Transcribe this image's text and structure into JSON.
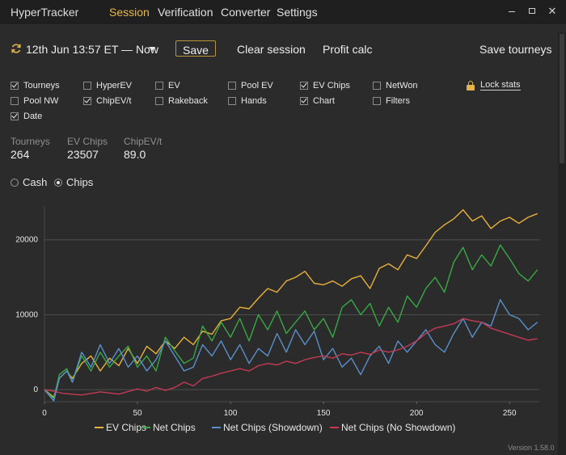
{
  "app": {
    "title": "HyperTracker",
    "version": "Version 1.58.0"
  },
  "menu": [
    {
      "label": "Session",
      "active": true
    },
    {
      "label": "Verification",
      "active": false
    },
    {
      "label": "Converter",
      "active": false
    },
    {
      "label": "Settings",
      "active": false
    }
  ],
  "toolbar": {
    "session_range": "12th Jun 13:57 ET — Now",
    "save_label": "Save",
    "clear_label": "Clear session",
    "profit_label": "Profit calc",
    "save_tourneys_label": "Save tourneys"
  },
  "checkboxes": [
    {
      "label": "Tourneys",
      "checked": true
    },
    {
      "label": "HyperEV",
      "checked": false
    },
    {
      "label": "EV",
      "checked": false
    },
    {
      "label": "Pool EV",
      "checked": false
    },
    {
      "label": "EV Chips",
      "checked": true
    },
    {
      "label": "NetWon",
      "checked": false
    },
    {
      "label": "Pool NW",
      "checked": false
    },
    {
      "label": "ChipEV/t",
      "checked": true
    },
    {
      "label": "Rakeback",
      "checked": false
    },
    {
      "label": "Hands",
      "checked": false
    },
    {
      "label": "Chart",
      "checked": true
    },
    {
      "label": "Filters",
      "checked": false
    },
    {
      "label": "Date",
      "checked": true
    }
  ],
  "lock": {
    "label": "Lock stats"
  },
  "stats": [
    {
      "label": "Tourneys",
      "value": "264"
    },
    {
      "label": "EV Chips",
      "value": "23507"
    },
    {
      "label": "ChipEV/t",
      "value": "89.0"
    }
  ],
  "mode": {
    "options": [
      {
        "label": "Cash",
        "selected": false
      },
      {
        "label": "Chips",
        "selected": true
      }
    ]
  },
  "chart_data": {
    "type": "line",
    "title": "",
    "xlabel": "",
    "ylabel": "",
    "xlim": [
      0,
      266
    ],
    "ylim": [
      -1600,
      24500
    ],
    "x_ticks": [
      0,
      50,
      100,
      150,
      200,
      250
    ],
    "y_ticks": [
      0,
      10000,
      20000
    ],
    "grid": "horizontal",
    "legend_position": "bottom",
    "series": [
      {
        "name": "EV Chips",
        "color": "#e8b13a",
        "points": [
          [
            0,
            0
          ],
          [
            5,
            -1000
          ],
          [
            8,
            1500
          ],
          [
            12,
            2500
          ],
          [
            15,
            1500
          ],
          [
            20,
            3500
          ],
          [
            25,
            4500
          ],
          [
            30,
            2500
          ],
          [
            35,
            4200
          ],
          [
            40,
            3200
          ],
          [
            45,
            5500
          ],
          [
            50,
            3500
          ],
          [
            55,
            5800
          ],
          [
            60,
            4800
          ],
          [
            65,
            6500
          ],
          [
            70,
            5500
          ],
          [
            75,
            7000
          ],
          [
            80,
            6000
          ],
          [
            85,
            7800
          ],
          [
            90,
            7400
          ],
          [
            95,
            9200
          ],
          [
            100,
            9500
          ],
          [
            105,
            11000
          ],
          [
            110,
            10800
          ],
          [
            115,
            12200
          ],
          [
            120,
            13500
          ],
          [
            125,
            13000
          ],
          [
            130,
            14500
          ],
          [
            135,
            15000
          ],
          [
            140,
            15800
          ],
          [
            145,
            14200
          ],
          [
            150,
            14000
          ],
          [
            155,
            14500
          ],
          [
            160,
            13800
          ],
          [
            165,
            14800
          ],
          [
            170,
            15200
          ],
          [
            175,
            13500
          ],
          [
            180,
            16200
          ],
          [
            185,
            16800
          ],
          [
            190,
            16000
          ],
          [
            195,
            18000
          ],
          [
            200,
            17500
          ],
          [
            205,
            19200
          ],
          [
            210,
            21000
          ],
          [
            215,
            22000
          ],
          [
            220,
            22800
          ],
          [
            225,
            24000
          ],
          [
            230,
            22500
          ],
          [
            235,
            23200
          ],
          [
            240,
            21500
          ],
          [
            245,
            22500
          ],
          [
            250,
            23000
          ],
          [
            255,
            22200
          ],
          [
            260,
            23000
          ],
          [
            265,
            23500
          ]
        ]
      },
      {
        "name": "Net Chips",
        "color": "#39a845",
        "points": [
          [
            0,
            0
          ],
          [
            5,
            -1200
          ],
          [
            8,
            2000
          ],
          [
            12,
            2800
          ],
          [
            15,
            1000
          ],
          [
            20,
            4500
          ],
          [
            25,
            2500
          ],
          [
            30,
            5000
          ],
          [
            35,
            3000
          ],
          [
            40,
            4500
          ],
          [
            45,
            5800
          ],
          [
            50,
            3000
          ],
          [
            55,
            4500
          ],
          [
            60,
            2500
          ],
          [
            65,
            7000
          ],
          [
            70,
            5200
          ],
          [
            75,
            3500
          ],
          [
            80,
            4200
          ],
          [
            85,
            8500
          ],
          [
            90,
            6500
          ],
          [
            95,
            9000
          ],
          [
            100,
            7000
          ],
          [
            105,
            9500
          ],
          [
            110,
            6500
          ],
          [
            115,
            10000
          ],
          [
            120,
            8000
          ],
          [
            125,
            10500
          ],
          [
            130,
            7500
          ],
          [
            135,
            9000
          ],
          [
            140,
            10500
          ],
          [
            145,
            8000
          ],
          [
            150,
            9500
          ],
          [
            155,
            7000
          ],
          [
            160,
            11000
          ],
          [
            165,
            12000
          ],
          [
            170,
            10000
          ],
          [
            175,
            11500
          ],
          [
            180,
            8500
          ],
          [
            185,
            11000
          ],
          [
            190,
            9000
          ],
          [
            195,
            12500
          ],
          [
            200,
            11000
          ],
          [
            205,
            13500
          ],
          [
            210,
            15000
          ],
          [
            215,
            13000
          ],
          [
            220,
            17000
          ],
          [
            225,
            19000
          ],
          [
            230,
            16000
          ],
          [
            235,
            18000
          ],
          [
            240,
            16500
          ],
          [
            245,
            19300
          ],
          [
            250,
            17500
          ],
          [
            255,
            15500
          ],
          [
            260,
            14500
          ],
          [
            265,
            16000
          ]
        ]
      },
      {
        "name": "Net Chips (Showdown)",
        "color": "#5a8fca",
        "points": [
          [
            0,
            0
          ],
          [
            5,
            -1500
          ],
          [
            8,
            1500
          ],
          [
            12,
            2500
          ],
          [
            15,
            1000
          ],
          [
            20,
            5000
          ],
          [
            25,
            3000
          ],
          [
            30,
            6000
          ],
          [
            35,
            3500
          ],
          [
            40,
            5500
          ],
          [
            45,
            3000
          ],
          [
            50,
            4500
          ],
          [
            55,
            2500
          ],
          [
            60,
            4000
          ],
          [
            65,
            6500
          ],
          [
            70,
            4500
          ],
          [
            75,
            2500
          ],
          [
            80,
            3000
          ],
          [
            85,
            6000
          ],
          [
            90,
            4500
          ],
          [
            95,
            6500
          ],
          [
            100,
            4000
          ],
          [
            105,
            6000
          ],
          [
            110,
            3500
          ],
          [
            115,
            5500
          ],
          [
            120,
            4500
          ],
          [
            125,
            7500
          ],
          [
            130,
            5000
          ],
          [
            135,
            8000
          ],
          [
            140,
            6000
          ],
          [
            145,
            7800
          ],
          [
            150,
            4000
          ],
          [
            155,
            5500
          ],
          [
            160,
            3000
          ],
          [
            165,
            4200
          ],
          [
            170,
            2000
          ],
          [
            175,
            4500
          ],
          [
            180,
            5800
          ],
          [
            185,
            3500
          ],
          [
            190,
            6500
          ],
          [
            195,
            5000
          ],
          [
            200,
            6500
          ],
          [
            205,
            8000
          ],
          [
            210,
            6000
          ],
          [
            215,
            5000
          ],
          [
            220,
            7500
          ],
          [
            225,
            9500
          ],
          [
            230,
            7000
          ],
          [
            235,
            9000
          ],
          [
            240,
            8500
          ],
          [
            245,
            12000
          ],
          [
            250,
            10000
          ],
          [
            255,
            9500
          ],
          [
            260,
            8000
          ],
          [
            265,
            9000
          ]
        ]
      },
      {
        "name": "Net Chips (No Showdown)",
        "color": "#c43a55",
        "points": [
          [
            0,
            0
          ],
          [
            5,
            -200
          ],
          [
            10,
            -500
          ],
          [
            20,
            -700
          ],
          [
            30,
            -300
          ],
          [
            40,
            -600
          ],
          [
            50,
            100
          ],
          [
            55,
            -200
          ],
          [
            60,
            300
          ],
          [
            65,
            -100
          ],
          [
            70,
            300
          ],
          [
            75,
            1000
          ],
          [
            80,
            500
          ],
          [
            85,
            1500
          ],
          [
            90,
            1800
          ],
          [
            95,
            2200
          ],
          [
            100,
            2500
          ],
          [
            105,
            2800
          ],
          [
            110,
            2500
          ],
          [
            115,
            3200
          ],
          [
            120,
            3500
          ],
          [
            125,
            3300
          ],
          [
            130,
            3800
          ],
          [
            135,
            3500
          ],
          [
            140,
            4000
          ],
          [
            145,
            4300
          ],
          [
            150,
            4500
          ],
          [
            155,
            4200
          ],
          [
            160,
            4800
          ],
          [
            165,
            4600
          ],
          [
            170,
            5000
          ],
          [
            175,
            4700
          ],
          [
            180,
            5300
          ],
          [
            185,
            5000
          ],
          [
            190,
            5300
          ],
          [
            195,
            5800
          ],
          [
            200,
            6500
          ],
          [
            205,
            7500
          ],
          [
            210,
            8200
          ],
          [
            215,
            8500
          ],
          [
            220,
            8800
          ],
          [
            225,
            9500
          ],
          [
            230,
            9200
          ],
          [
            235,
            9000
          ],
          [
            240,
            8200
          ],
          [
            245,
            7800
          ],
          [
            250,
            7400
          ],
          [
            255,
            7000
          ],
          [
            260,
            6600
          ],
          [
            265,
            6800
          ]
        ]
      }
    ]
  }
}
